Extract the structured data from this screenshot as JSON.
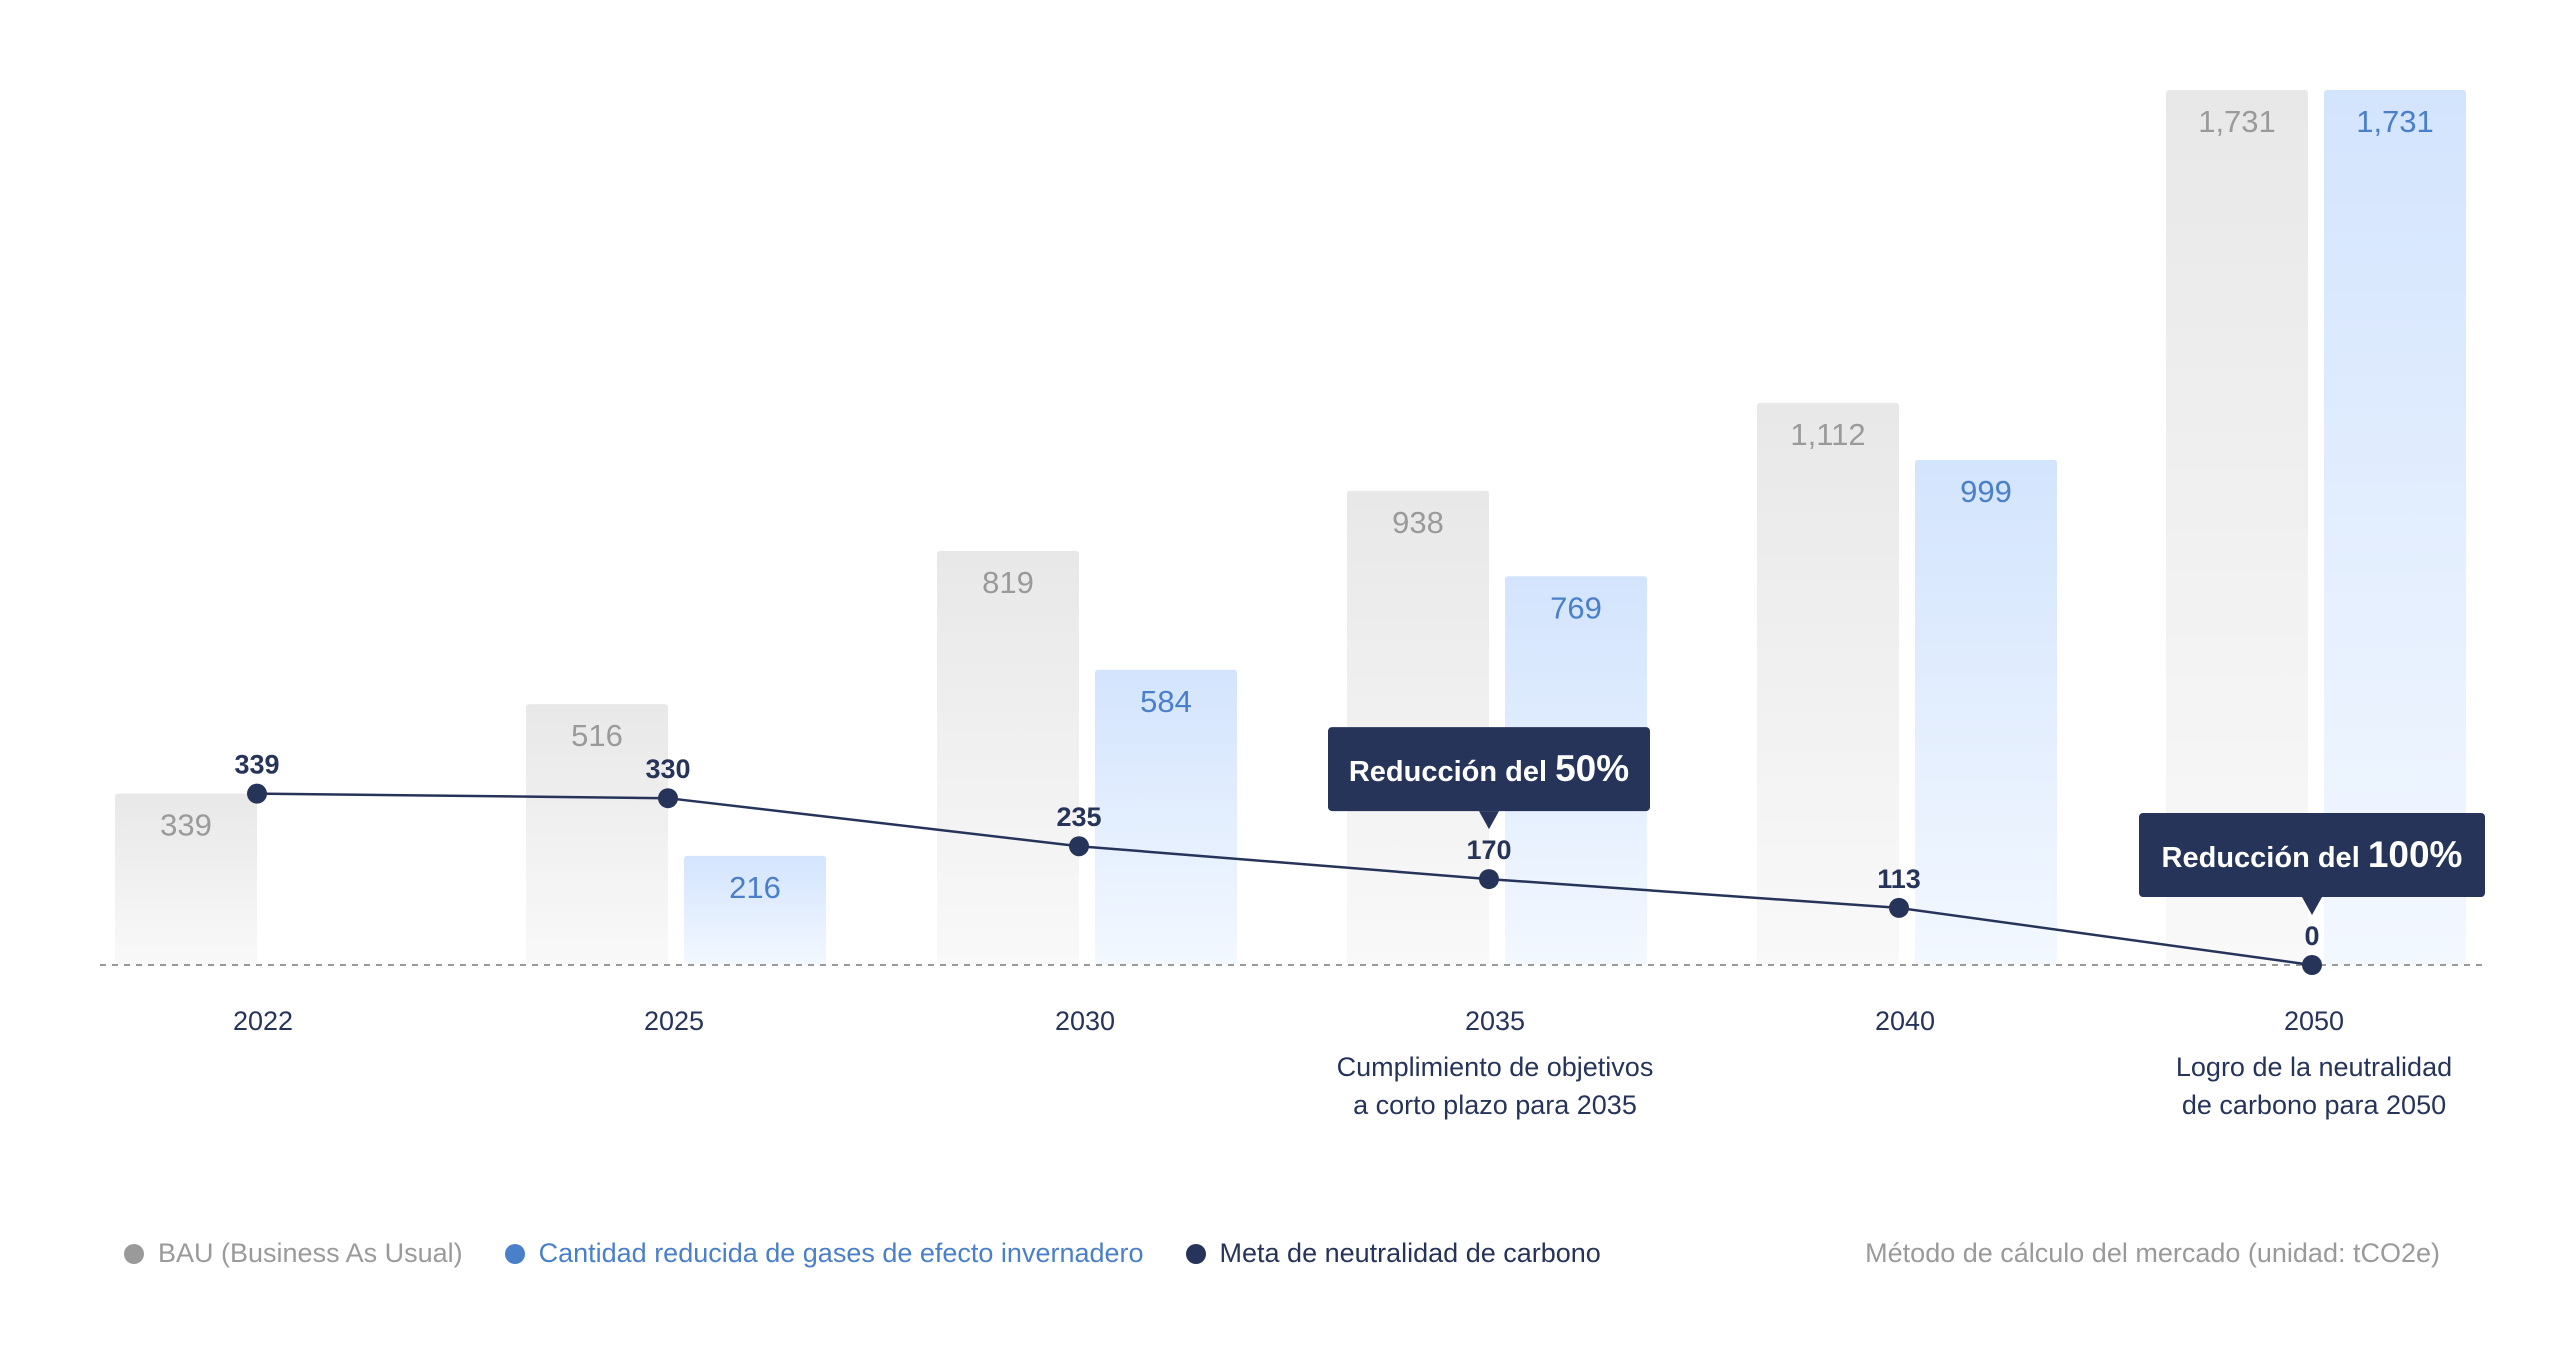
{
  "chart_data": {
    "type": "bar",
    "categories": [
      "2022",
      "2025",
      "2030",
      "2035",
      "2040",
      "2050"
    ],
    "series": [
      {
        "name": "BAU (Business As Usual)",
        "values": [
          339,
          516,
          819,
          938,
          1112,
          1731
        ],
        "labels": [
          "339",
          "516",
          "819",
          "938",
          "1,112",
          "1,731"
        ]
      },
      {
        "name": "Cantidad reducida de gases de efecto invernadero",
        "values": [
          null,
          216,
          584,
          769,
          999,
          1731
        ],
        "labels": [
          "",
          "216",
          "584",
          "769",
          "999",
          "1,731"
        ]
      },
      {
        "name": "Meta de neutralidad de carbono",
        "type": "line",
        "values": [
          339,
          330,
          235,
          170,
          113,
          0
        ],
        "labels": [
          "339",
          "330",
          "235",
          "170",
          "113",
          "0"
        ]
      }
    ],
    "ylim": [
      0,
      1731
    ],
    "category_notes": [
      "",
      "",
      "",
      "Cumplimiento de objetivos\na corto plazo para 2035",
      "",
      "Logro de la neutralidad\nde carbono para 2050"
    ],
    "annotations": [
      {
        "category": "2035",
        "prefix": "Reducción del ",
        "value": "50%"
      },
      {
        "category": "2050",
        "prefix": "Reducción del ",
        "value": "100%"
      }
    ],
    "unit_note": "Método de cálculo del mercado (unidad: tCO2e)"
  },
  "legend": [
    {
      "label": "BAU (Business As Usual)",
      "color": "#9a9a9a"
    },
    {
      "label": "Cantidad reducida de gases de efecto invernadero",
      "color": "#4a7fc9"
    },
    {
      "label": "Meta de neutralidad de carbono",
      "color": "#26345a"
    }
  ],
  "colors": {
    "bau": "#ececec",
    "reduced": "#d3e4fd",
    "goal": "#26345a"
  }
}
